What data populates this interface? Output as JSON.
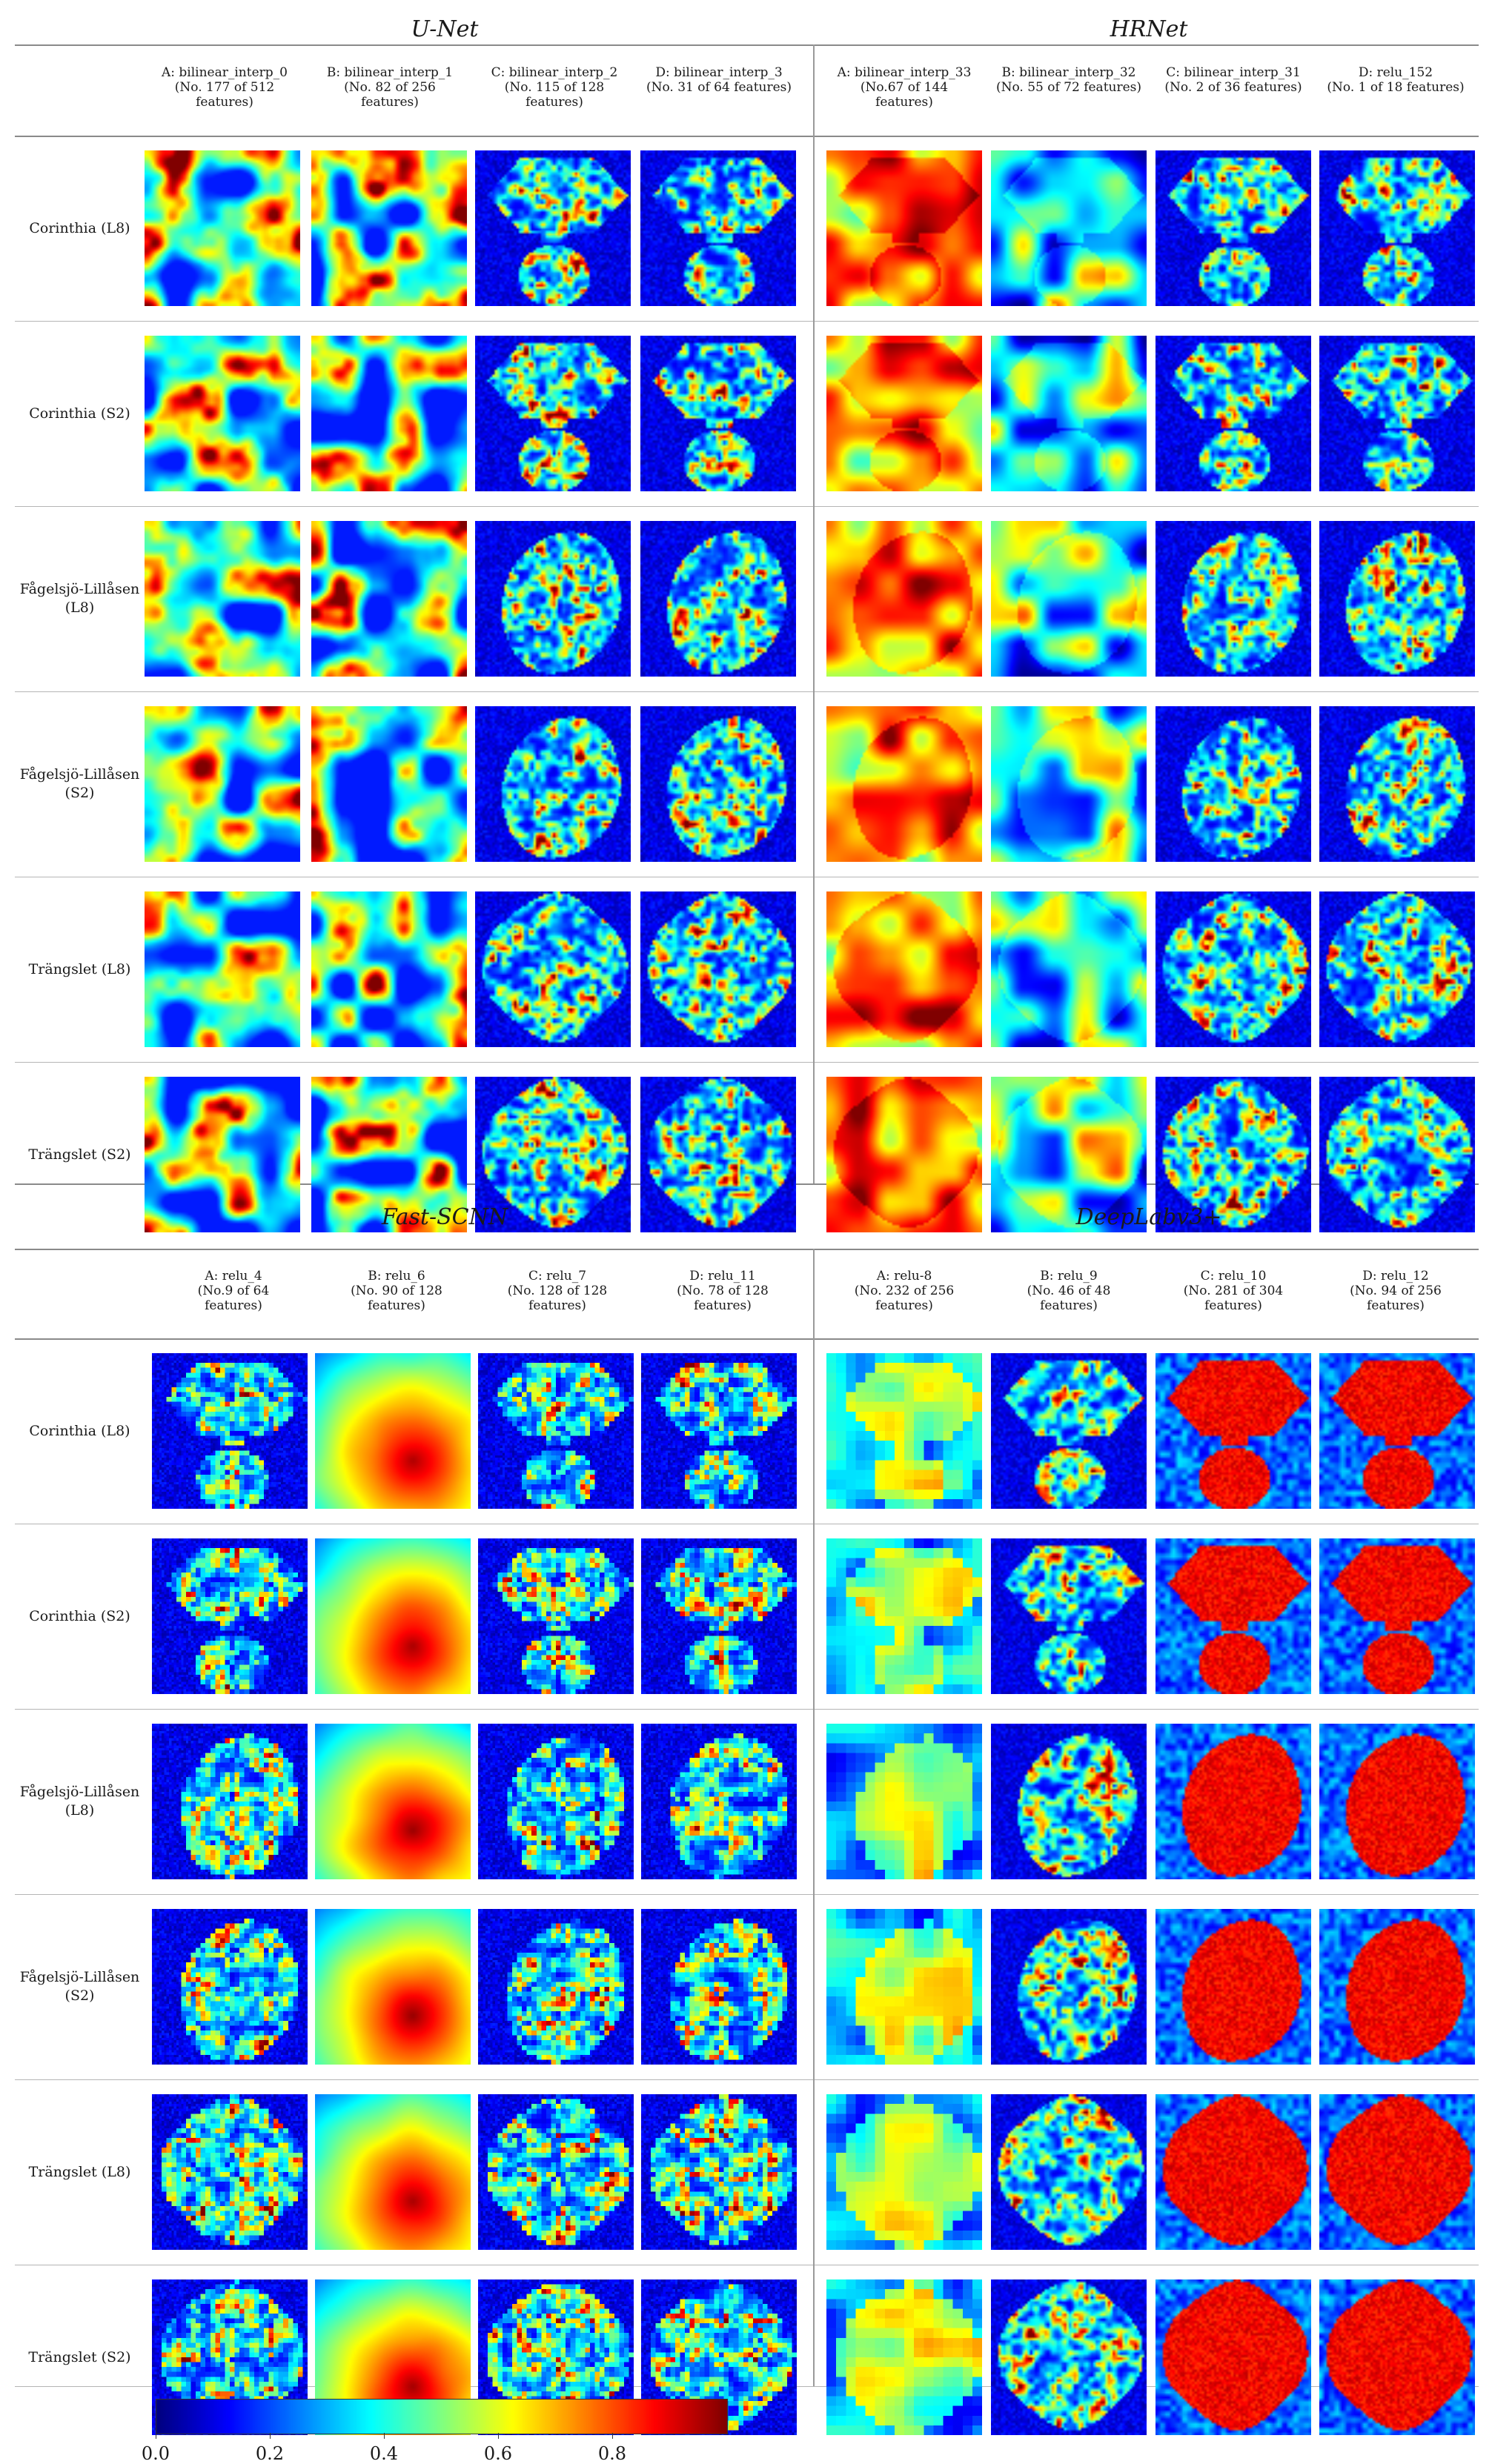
{
  "panels": [
    {
      "title": "U-Net",
      "columns": [
        "A: bilinear_interp_0\n(No. 177 of 512\nfeatures)",
        "B: bilinear_interp_1\n(No. 82 of 256\nfeatures)",
        "C: bilinear_interp_2\n(No. 115 of 128\nfeatures)",
        "D: bilinear_interp_3\n(No. 31 of 64 features)"
      ],
      "rows": [
        "Corinthia (L8)",
        "Corinthia (S2)",
        "Fågelsjö-Lillåsen\n(L8)",
        "Fågelsjö-Lillåsen\n(S2)",
        "Trängslet (L8)",
        "Trängslet (S2)"
      ]
    },
    {
      "title": "HRNet",
      "columns": [
        "A: bilinear_interp_33\n(No.67 of 144\nfeatures)",
        "B: bilinear_interp_32\n(No. 55 of 72 features)",
        "C: bilinear_interp_31\n(No. 2 of 36 features)",
        "D: relu_152\n(No. 1 of 18 features)"
      ],
      "rows": []
    },
    {
      "title": "Fast-SCNN",
      "columns": [
        "A: relu_4\n(No.9  of 64\nfeatures)",
        "B: relu_6\n(No. 90 of 128\nfeatures)",
        "C: relu_7\n(No. 128 of 128\nfeatures)",
        "D: relu_11\n(No. 78 of 128\nfeatures)"
      ],
      "rows": [
        "Corinthia (L8)",
        "Corinthia (S2)",
        "Fågelsjö-Lillåsen\n(L8)",
        "Fågelsjö-Lillåsen\n(S2)",
        "Trängslet (L8)",
        "Trängslet (S2)"
      ]
    },
    {
      "title": "DeepLabv3+",
      "columns": [
        "A: relu-8\n(No. 232 of 256\nfeatures)",
        "B: relu_9\n(No. 46 of 48\nfeatures)",
        "C: relu_10\n(No. 281 of 304\nfeatures)",
        "D: relu_12\n(No. 94 of 256\nfeatures)"
      ],
      "rows": []
    }
  ],
  "colorbar": {
    "ticks": [
      "0.0",
      "0.2",
      "0.4",
      "0.6",
      "0.8"
    ],
    "colormap": "jet",
    "range": [
      0,
      1
    ]
  }
}
